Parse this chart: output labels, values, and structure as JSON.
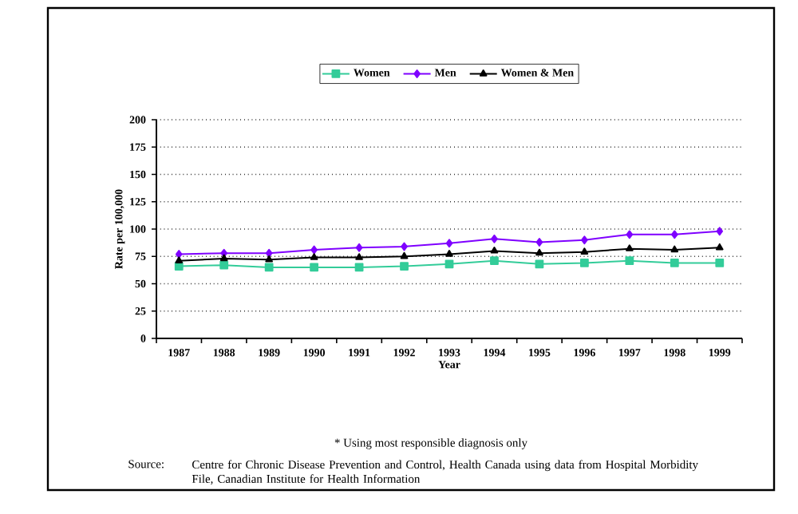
{
  "chart_data": {
    "type": "line",
    "categories": [
      "1987",
      "1988",
      "1989",
      "1990",
      "1991",
      "1992",
      "1993",
      "1994",
      "1995",
      "1996",
      "1997",
      "1998",
      "1999"
    ],
    "series": [
      {
        "name": "Women",
        "color": "#33cc99",
        "marker": "square",
        "values": [
          66,
          67,
          65,
          65,
          65,
          66,
          68,
          71,
          68,
          69,
          71,
          69,
          69
        ]
      },
      {
        "name": "Men",
        "color": "#7f00ff",
        "marker": "diamond",
        "values": [
          77,
          78,
          78,
          81,
          83,
          84,
          87,
          91,
          88,
          90,
          95,
          95,
          98
        ]
      },
      {
        "name": "Women & Men",
        "color": "#000000",
        "marker": "triangle",
        "values": [
          71,
          73,
          72,
          74,
          74,
          75,
          77,
          80,
          78,
          79,
          82,
          81,
          83
        ]
      }
    ],
    "xlabel": "Year",
    "ylabel": "Rate per 100,000",
    "ylim": [
      0,
      200
    ],
    "yticks": [
      0,
      25,
      50,
      75,
      100,
      125,
      150,
      175,
      200
    ],
    "grid": "y",
    "legend": "top",
    "annotations": [
      "* Using most responsible diagnosis only",
      "Source:",
      "Centre for Chronic Disease Prevention and Control, Health Canada using data from Hospital Morbidity File, Canadian Institute for Health Information"
    ]
  }
}
